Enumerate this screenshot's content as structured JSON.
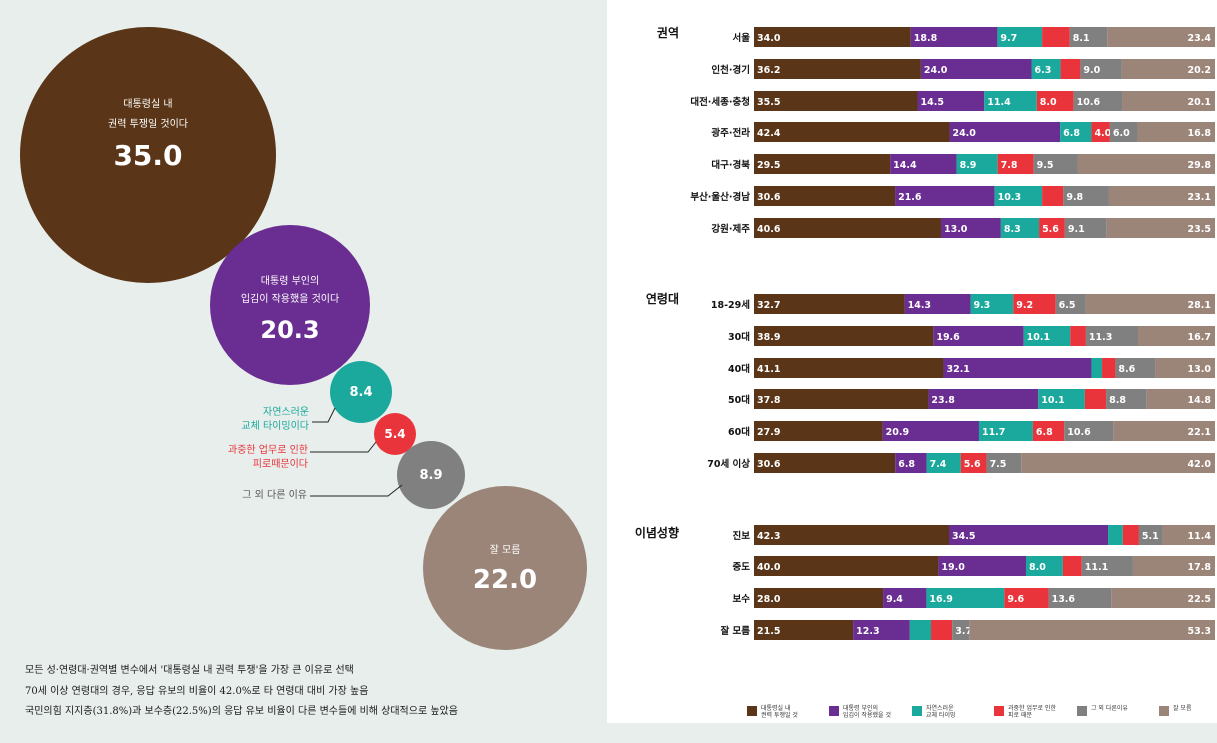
{
  "colors": [
    "#5a3517",
    "#6a2d91",
    "#1aa99c",
    "#e8343a",
    "#808080",
    "#9b8478"
  ],
  "bubbles": [
    {
      "label_lines": [
        "대통령실 내",
        "권력 투쟁일 것이다"
      ],
      "value": "35.0",
      "color": "#5a3517"
    },
    {
      "label_lines": [
        "대통령 부인의",
        "입김이 작용했을 것이다"
      ],
      "value": "20.3",
      "color": "#6a2d91"
    },
    {
      "label_lines": [
        "자연스러운",
        "교체 타이밍이다"
      ],
      "value": "8.4",
      "color": "#1aa99c"
    },
    {
      "label_lines": [
        "과중한 업무로 인한",
        "피로때문이다"
      ],
      "value": "5.4",
      "color": "#e8343a"
    },
    {
      "label_lines": [
        "그 외 다른 이유"
      ],
      "value": "8.9",
      "color": "#808080"
    },
    {
      "label_lines": [
        "잘 모름"
      ],
      "value": "22.0",
      "color": "#9b8478"
    }
  ],
  "notes": [
    "모든 성·연령대·권역별 변수에서 '대통령실 내 권력 투쟁'을 가장 큰 이유로 선택",
    "70세 이상 연령대의 경우, 응답 유보의 비율이 42.0%로 타 연령대 대비 가장 높음",
    "국민의힘 지지층(31.8%)과 보수층(22.5%)의 응답 유보 비율이 다른 변수들에 비해 상대적으로 높았음"
  ],
  "chart_data": {
    "type": "bar",
    "stacked": true,
    "orientation": "horizontal",
    "series_names": [
      "대통령실 내 권력 투쟁일 것",
      "대통령 부인의 입김이 작용했을 것",
      "자연스러운 교체 타이밍",
      "과중한 업무로 인한 피로 때문",
      "그 외 다른이유",
      "잘 모름"
    ],
    "legend_lines": [
      [
        "대통령실 내",
        "권력 투쟁일 것"
      ],
      [
        "대통령 부인의",
        "입김이 작용했을 것"
      ],
      [
        "자연스러운",
        "교체 타이밍"
      ],
      [
        "과중한 업무로 인한",
        "피로 때문"
      ],
      [
        "그 외 다른이유"
      ],
      [
        "잘 모름"
      ]
    ],
    "groups": [
      {
        "title": "권역",
        "rows": [
          {
            "label": "서울",
            "values": [
              34.0,
              18.8,
              9.7,
              6.0,
              8.1,
              23.4
            ]
          },
          {
            "label": "인천·경기",
            "values": [
              36.2,
              24.0,
              6.3,
              4.3,
              9.0,
              20.2
            ]
          },
          {
            "label": "대전·세종·충청",
            "values": [
              35.5,
              14.5,
              11.4,
              8.0,
              10.6,
              20.1
            ]
          },
          {
            "label": "광주·전라",
            "values": [
              42.4,
              24.0,
              6.8,
              4.0,
              6.0,
              16.8
            ]
          },
          {
            "label": "대구·경북",
            "values": [
              29.5,
              14.4,
              8.9,
              7.8,
              9.5,
              29.8
            ]
          },
          {
            "label": "부산·울산·경남",
            "values": [
              30.6,
              21.6,
              10.3,
              4.6,
              9.8,
              23.1
            ]
          },
          {
            "label": "강원·제주",
            "values": [
              40.6,
              13.0,
              8.3,
              5.6,
              9.1,
              23.5
            ]
          }
        ]
      },
      {
        "title": "연령대",
        "rows": [
          {
            "label": "18-29세",
            "values": [
              32.7,
              14.3,
              9.3,
              9.2,
              6.5,
              28.1
            ]
          },
          {
            "label": "30대",
            "values": [
              38.9,
              19.6,
              10.1,
              3.4,
              11.3,
              16.7
            ]
          },
          {
            "label": "40대",
            "values": [
              41.1,
              32.1,
              2.3,
              2.9,
              8.6,
              13.0
            ]
          },
          {
            "label": "50대",
            "values": [
              37.8,
              23.8,
              10.1,
              4.6,
              8.8,
              14.8
            ]
          },
          {
            "label": "60대",
            "values": [
              27.9,
              20.9,
              11.7,
              6.8,
              10.6,
              22.1
            ]
          },
          {
            "label": "70세 이상",
            "values": [
              30.6,
              6.8,
              7.4,
              5.6,
              7.5,
              42.0
            ]
          }
        ]
      },
      {
        "title": "이념성향",
        "rows": [
          {
            "label": "진보",
            "values": [
              42.3,
              34.5,
              3.2,
              3.5,
              5.1,
              11.4
            ]
          },
          {
            "label": "중도",
            "values": [
              40.0,
              19.0,
              8.0,
              4.1,
              11.1,
              17.8
            ]
          },
          {
            "label": "보수",
            "values": [
              28.0,
              9.4,
              16.9,
              9.6,
              13.6,
              22.5
            ]
          },
          {
            "label": "잘 모름",
            "values": [
              21.5,
              12.3,
              4.6,
              4.6,
              3.7,
              53.3
            ]
          }
        ]
      }
    ],
    "hidden_labels": [
      [
        [
          3
        ],
        [
          3
        ],
        [],
        [],
        [],
        [
          3
        ],
        []
      ],
      [
        [],
        [
          3
        ],
        [
          2,
          3
        ],
        [
          3
        ],
        [],
        []
      ],
      [
        [
          2,
          3
        ],
        [
          3
        ],
        [],
        [
          2,
          3
        ]
      ]
    ]
  }
}
